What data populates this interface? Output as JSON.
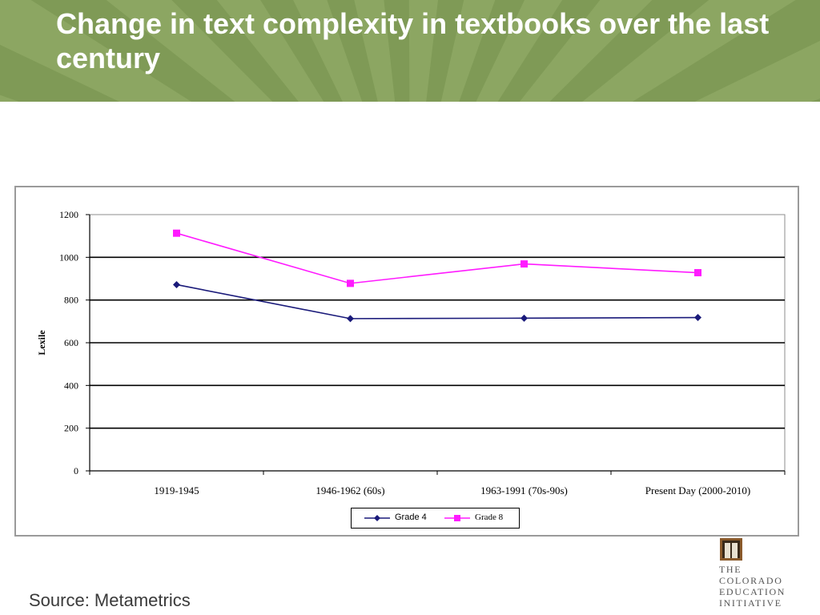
{
  "title": "Change in text complexity in textbooks over the last century",
  "colors": {
    "header_bg": "#7f9a56",
    "header_ray": "#98b06d",
    "grade4": "#1a1a7a",
    "grade8": "#ff1aff",
    "frame_border": "#9a9a9a"
  },
  "chart_data": {
    "type": "line",
    "categories": [
      "1919-1945",
      "1946-1962 (60s)",
      "1963-1991 (70s-90s)",
      "Present Day (2000-2010)"
    ],
    "series": [
      {
        "name": "Grade 4",
        "values": [
          872,
          713,
          715,
          718
        ],
        "color": "#1a1a7a",
        "marker": "diamond"
      },
      {
        "name": "Grade 8",
        "values": [
          1113,
          878,
          969,
          928
        ],
        "color": "#ff1aff",
        "marker": "square"
      }
    ],
    "ylabel": "Lexile",
    "xlabel": "",
    "ylim": [
      0,
      1200
    ],
    "yticks": [
      0,
      200,
      400,
      600,
      800,
      1000,
      1200
    ],
    "grid": true,
    "legend_position": "bottom"
  },
  "source": "Source: Metametrics",
  "logo": {
    "lines": [
      "THE",
      "COLORADO",
      "EDUCATION",
      "INITIATIVE"
    ]
  }
}
